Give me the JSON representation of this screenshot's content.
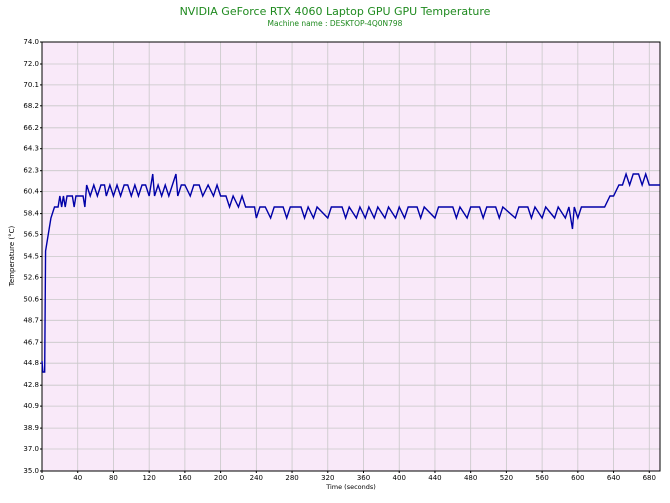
{
  "chart_data": {
    "type": "line",
    "title": "NVIDIA GeForce RTX 4060 Laptop GPU GPU Temperature",
    "subtitle": "Machine name : DESKTOP-4Q0N798",
    "x_label": "Time (seconds)",
    "y_label": "Temperature (°C)",
    "xlim": [
      0,
      692
    ],
    "ylim": [
      35,
      74
    ],
    "xticks": [
      0,
      40,
      80,
      120,
      160,
      200,
      240,
      280,
      320,
      360,
      400,
      440,
      480,
      520,
      560,
      600,
      640,
      680
    ],
    "yticks": [
      {
        "value": 35,
        "label": "35.0"
      },
      {
        "value": 37,
        "label": "37.0"
      },
      38.9,
      40.9,
      42.8,
      44.8,
      46.7,
      48.7,
      50.6,
      52.6,
      54.5,
      56.5,
      58.4,
      60.4,
      62.3,
      64.3,
      66.2,
      68.2,
      70.1,
      {
        "value": 72,
        "label": "72.0"
      },
      {
        "value": 74,
        "label": "74.0"
      }
    ],
    "grid": true,
    "background": "#f9e9f9",
    "grid_color": "#c8c8c8",
    "x": [
      0,
      1,
      3,
      4,
      6,
      8,
      10,
      14,
      18,
      20,
      22,
      24,
      26,
      28,
      30,
      34,
      36,
      38,
      42,
      46,
      48,
      50,
      54,
      58,
      62,
      66,
      70,
      72,
      76,
      80,
      84,
      88,
      92,
      96,
      100,
      104,
      108,
      112,
      116,
      120,
      124,
      126,
      130,
      134,
      138,
      142,
      146,
      150,
      152,
      156,
      160,
      166,
      170,
      176,
      180,
      186,
      192,
      196,
      200,
      206,
      210,
      214,
      220,
      224,
      228,
      232,
      238,
      240,
      244,
      250,
      256,
      260,
      270,
      274,
      278,
      290,
      294,
      298,
      304,
      308,
      320,
      324,
      336,
      340,
      344,
      352,
      356,
      362,
      366,
      372,
      376,
      384,
      388,
      396,
      400,
      406,
      410,
      420,
      424,
      428,
      440,
      444,
      460,
      464,
      468,
      476,
      480,
      490,
      494,
      498,
      508,
      512,
      516,
      530,
      534,
      544,
      548,
      552,
      560,
      564,
      574,
      578,
      586,
      590,
      594,
      596,
      600,
      604,
      612,
      620,
      630,
      636,
      640,
      646,
      650,
      654,
      658,
      662,
      668,
      672,
      676,
      680,
      686,
      692
    ],
    "series": [
      {
        "name": "GPU Temperature",
        "color": "#0000a8",
        "values": [
          45,
          44,
          44,
          55,
          56,
          57,
          58,
          59,
          59,
          60,
          59,
          60,
          59,
          60,
          60,
          60,
          59,
          60,
          60,
          60,
          59,
          61,
          60,
          61,
          60,
          61,
          61,
          60,
          61,
          60,
          61,
          60,
          61,
          61,
          60,
          61,
          60,
          61,
          61,
          60,
          62,
          60,
          61,
          60,
          61,
          60,
          61,
          62,
          60,
          61,
          61,
          60,
          61,
          61,
          60,
          61,
          60,
          61,
          60,
          60,
          59,
          60,
          59,
          60,
          59,
          59,
          59,
          58,
          59,
          59,
          58,
          59,
          59,
          58,
          59,
          59,
          58,
          59,
          58,
          59,
          58,
          59,
          59,
          58,
          59,
          58,
          59,
          58,
          59,
          58,
          59,
          58,
          59,
          58,
          59,
          58,
          59,
          59,
          58,
          59,
          58,
          59,
          59,
          58,
          59,
          58,
          59,
          59,
          58,
          59,
          59,
          58,
          59,
          58,
          59,
          59,
          58,
          59,
          58,
          59,
          58,
          59,
          58,
          59,
          57,
          59,
          58,
          59,
          59,
          59,
          59,
          60,
          60,
          61,
          61,
          62,
          61,
          62,
          62,
          61,
          62,
          61,
          61,
          61
        ]
      }
    ]
  }
}
